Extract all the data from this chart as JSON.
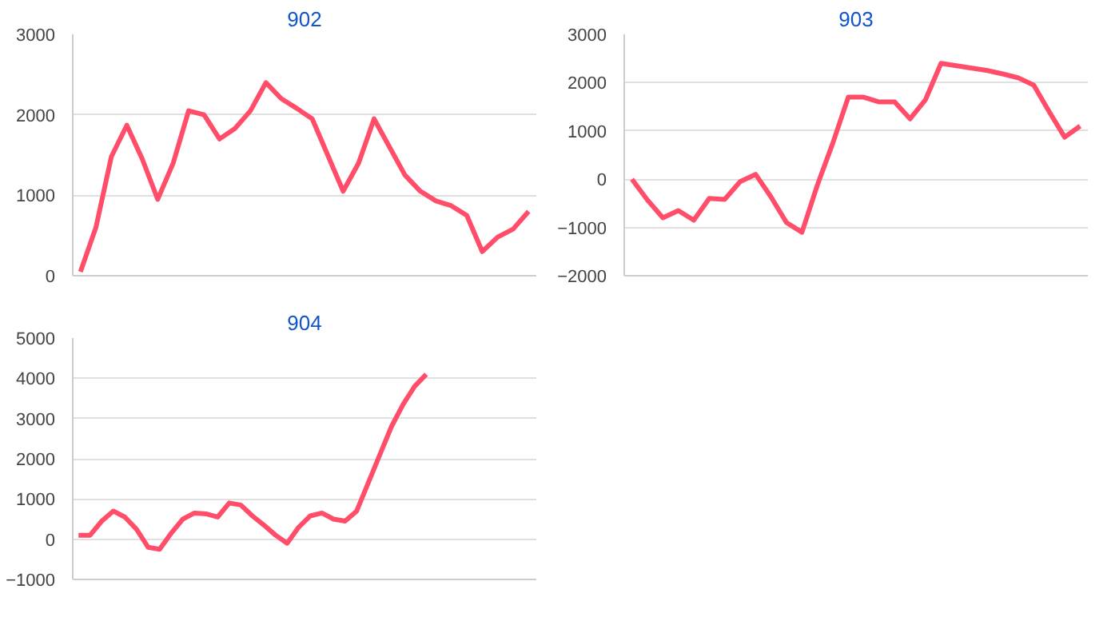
{
  "chart_data": [
    {
      "type": "line",
      "title": "902",
      "categories": [
        null,
        null,
        null,
        null,
        null,
        null,
        null,
        null,
        null,
        null,
        null,
        null,
        null,
        null,
        null,
        null,
        null,
        null,
        null,
        null,
        null,
        null,
        null,
        null,
        null,
        null,
        null,
        null,
        null,
        null
      ],
      "series": [
        {
          "color": "#ff4d6a",
          "values": [
            50,
            600,
            1480,
            1870,
            1450,
            950,
            1400,
            2050,
            2000,
            1700,
            1830,
            2050,
            2400,
            2200,
            2080,
            1950,
            1500,
            1050,
            1400,
            1950,
            1600,
            1250,
            1050,
            930,
            870,
            750,
            300,
            480,
            580,
            800
          ]
        }
      ],
      "ylim": [
        0,
        3000
      ],
      "yticks": [
        0,
        1000,
        2000,
        3000
      ],
      "grid": "y",
      "tick_labels": "y"
    },
    {
      "type": "line",
      "title": "903",
      "categories": [
        null,
        null,
        null,
        null,
        null,
        null,
        null,
        null,
        null,
        null,
        null,
        null,
        null,
        null,
        null,
        null,
        null,
        null,
        null,
        null,
        null,
        null,
        null,
        null,
        null,
        null,
        null,
        null,
        null,
        null
      ],
      "series": [
        {
          "color": "#ff4d6a",
          "values": [
            0,
            -430,
            -800,
            -650,
            -850,
            -400,
            -420,
            -50,
            100,
            -370,
            -900,
            -1100,
            -120,
            750,
            1700,
            1700,
            1600,
            1600,
            1250,
            1650,
            2400,
            2350,
            2300,
            2250,
            2180,
            2100,
            1950,
            1400,
            870,
            1100
          ]
        }
      ],
      "ylim": [
        -2000,
        3000
      ],
      "yticks": [
        -2000,
        -1000,
        0,
        1000,
        2000,
        3000
      ],
      "grid": "y",
      "tick_labels": "y"
    },
    {
      "type": "line",
      "title": "904",
      "categories": [
        null,
        null,
        null,
        null,
        null,
        null,
        null,
        null,
        null,
        null,
        null,
        null,
        null,
        null,
        null,
        null,
        null,
        null,
        null,
        null,
        null,
        null,
        null,
        null,
        null,
        null,
        null,
        null,
        null,
        null,
        null,
        null,
        null,
        null,
        null,
        null,
        null,
        null,
        null,
        null
      ],
      "series": [
        {
          "color": "#ff4d6a",
          "values": [
            100,
            100,
            450,
            700,
            550,
            250,
            -200,
            -250,
            150,
            500,
            650,
            630,
            550,
            900,
            850,
            580,
            350,
            100,
            -100,
            300,
            580,
            650,
            500,
            450,
            700,
            1400,
            2100,
            2800,
            3350,
            3800,
            4100,
            null,
            null,
            null,
            null,
            null,
            null,
            null,
            null,
            null
          ]
        }
      ],
      "ylim": [
        -1000,
        5000
      ],
      "yticks": [
        -1000,
        0,
        1000,
        2000,
        3000,
        4000,
        5000
      ],
      "grid": "y",
      "tick_labels": "y"
    }
  ]
}
